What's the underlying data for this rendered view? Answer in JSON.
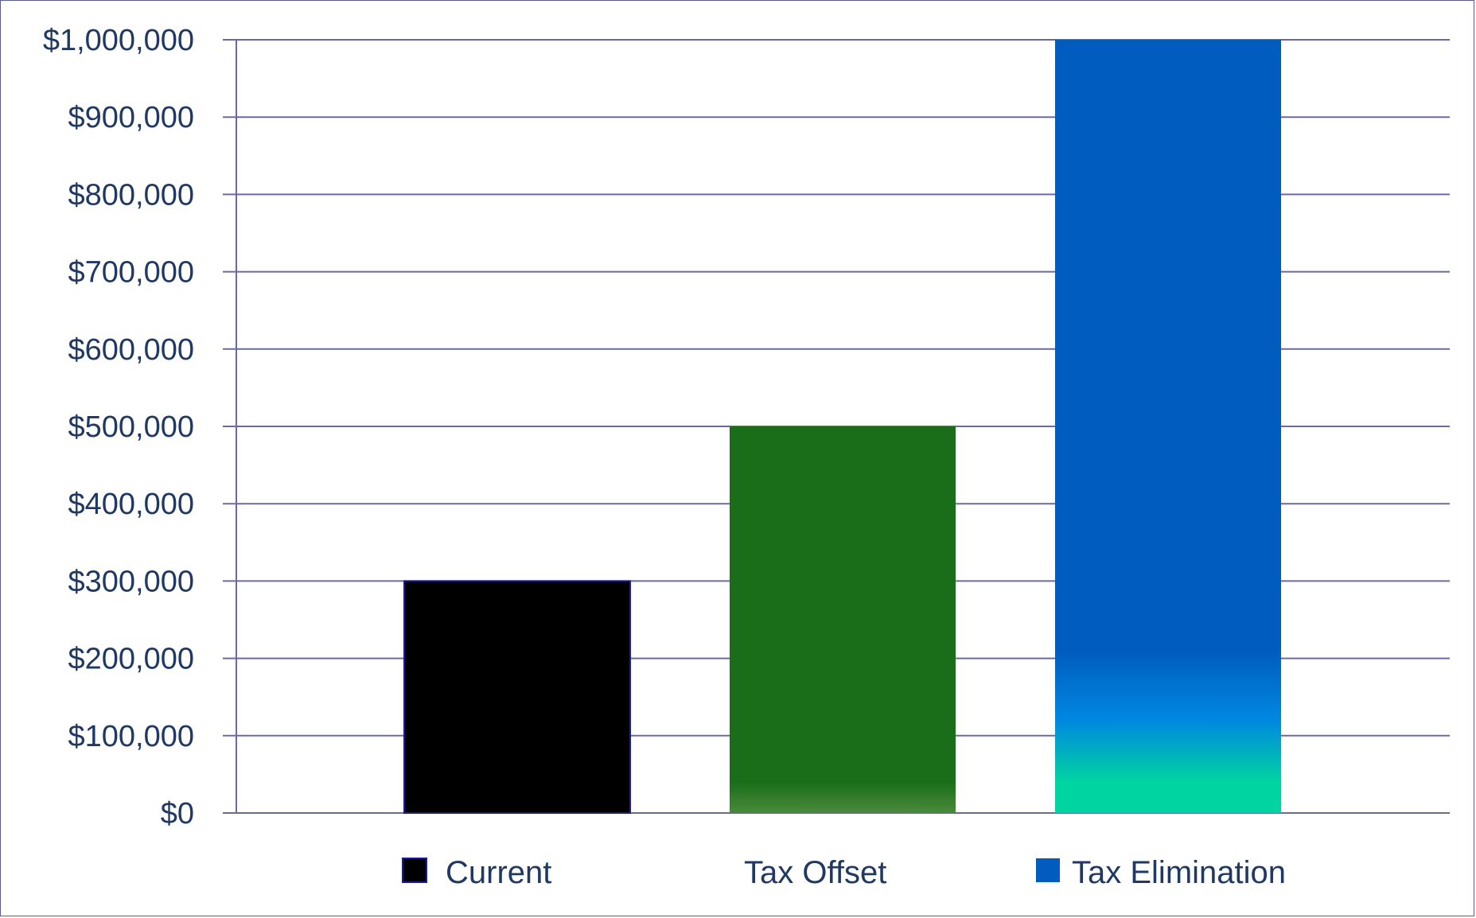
{
  "chart_data": {
    "type": "bar",
    "title": "",
    "xlabel": "",
    "ylabel": "",
    "categories": [
      "Current",
      "Tax Offset",
      "Tax Elimination"
    ],
    "values": [
      300000,
      500000,
      1000000
    ],
    "ylim": [
      0,
      1000000
    ],
    "yticks": [
      0,
      100000,
      200000,
      300000,
      400000,
      500000,
      600000,
      700000,
      800000,
      900000,
      1000000
    ],
    "ytick_labels": [
      "$0",
      "$100,000",
      "$200,000",
      "$300,000",
      "$400,000",
      "$500,000",
      "$600,000",
      "$700,000",
      "$800,000",
      "$900,000",
      "$1,000,000"
    ],
    "grid": true,
    "legend_position": "bottom",
    "legend": [
      {
        "label": "Current",
        "color": "#000000",
        "marker": true
      },
      {
        "label": "Tax Offset",
        "color": "#1a6e1a",
        "marker": false
      },
      {
        "label": "Tax Elimination",
        "color": "#005cbf",
        "marker": true
      }
    ],
    "colors": {
      "current": "#000000",
      "current_border": "#1a1aa0",
      "tax_offset_top": "#1a6e1a",
      "tax_offset_bottom": "#4a8a3a",
      "tax_elimination_top": "#005cbf",
      "tax_elimination_mid": "#0088e0",
      "tax_elimination_bottom": "#00d4a0",
      "gridline": "#6a6aa0",
      "axis_text": "#1f3864"
    }
  }
}
